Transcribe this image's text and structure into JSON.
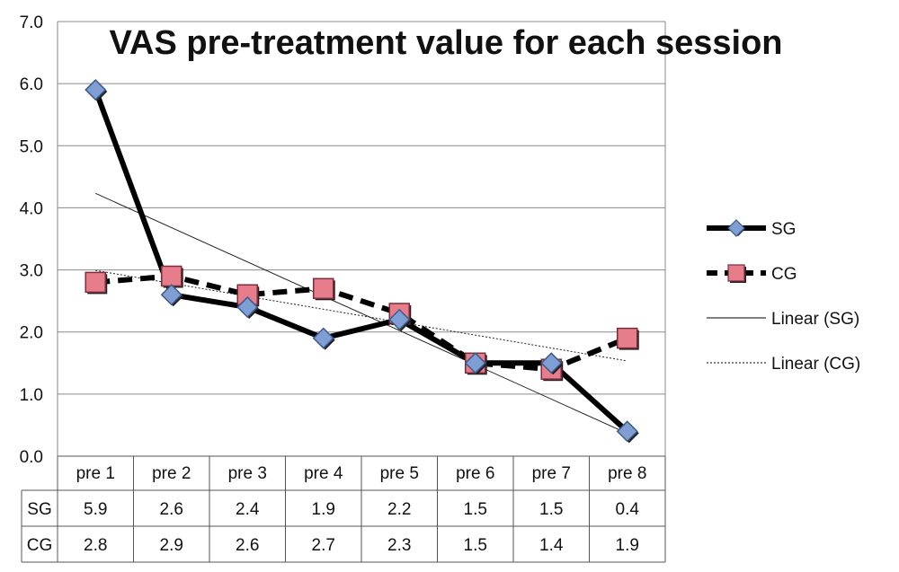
{
  "chart_data": {
    "type": "line",
    "title": "VAS pre-treatment value for each session",
    "categories": [
      "pre 1",
      "pre 2",
      "pre 3",
      "pre 4",
      "pre 5",
      "pre 6",
      "pre 7",
      "pre 8"
    ],
    "ylim": [
      0,
      7
    ],
    "yticks": [
      "0.0",
      "1.0",
      "2.0",
      "3.0",
      "4.0",
      "5.0",
      "6.0",
      "7.0"
    ],
    "grid": true,
    "legend_position": "right",
    "series": [
      {
        "name": "SG",
        "values": [
          5.9,
          2.6,
          2.4,
          1.9,
          2.2,
          1.5,
          1.5,
          0.4
        ],
        "labels": [
          "5.9",
          "2.6",
          "2.4",
          "1.9",
          "2.2",
          "1.5",
          "1.5",
          "0.4"
        ],
        "marker": "diamond",
        "line": "solid",
        "marker_color": "#7f9fd4"
      },
      {
        "name": "CG",
        "values": [
          2.8,
          2.9,
          2.6,
          2.7,
          2.3,
          1.5,
          1.4,
          1.9
        ],
        "labels": [
          "2.8",
          "2.9",
          "2.6",
          "2.7",
          "2.3",
          "1.5",
          "1.4",
          "1.9"
        ],
        "marker": "square",
        "line": "dashed",
        "marker_color": "#e77d8a"
      }
    ],
    "trendlines": [
      {
        "name": "Linear (SG)",
        "series": "SG",
        "style": "solid"
      },
      {
        "name": "Linear (CG)",
        "series": "CG",
        "style": "dotted"
      }
    ]
  }
}
